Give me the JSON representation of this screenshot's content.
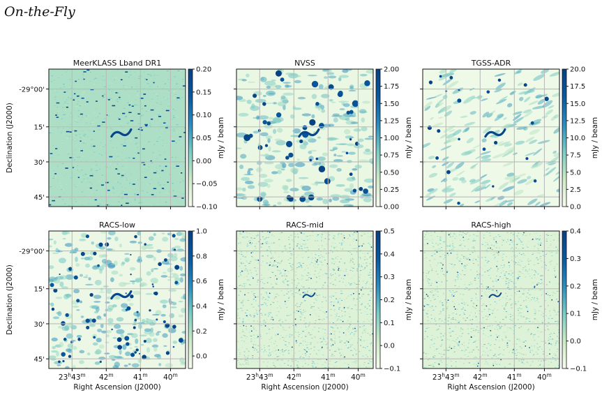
{
  "page": {
    "heading": "On-the-Fly"
  },
  "colors": {
    "colormap": [
      "#f7fcf0",
      "#ccebc5",
      "#7bccc4",
      "#2b8cbe",
      "#08589e",
      "#084081"
    ],
    "grid": "#bbbbbb",
    "axes": "#111111"
  },
  "chart_data": [
    {
      "type": "heatmap",
      "title": "MeerKLASS Lband DR1",
      "colorbar": {
        "label": "mJy / beam",
        "range": [
          -0.1,
          0.2
        ],
        "ticks": [
          "0.20",
          "0.15",
          "0.10",
          "0.05",
          "0.00",
          "−0.05",
          "−0.10"
        ]
      },
      "ylabel": "Declination (J2000)",
      "yticks": [
        "-29°00'",
        "15'",
        "30'",
        "45'"
      ],
      "xlabel": "",
      "xticks": [],
      "grid": true,
      "texture": "dense-noise"
    },
    {
      "type": "heatmap",
      "title": "NVSS",
      "colorbar": {
        "label": "mJy / beam",
        "range": [
          0,
          2
        ],
        "ticks": [
          "2.00",
          "1.75",
          "1.50",
          "1.25",
          "1.00",
          "0.75",
          "0.50",
          "0.25",
          "0.00"
        ]
      },
      "ylabel": "",
      "yticks": [],
      "xlabel": "",
      "xticks": [],
      "grid": true,
      "texture": "blobs"
    },
    {
      "type": "heatmap",
      "title": "TGSS-ADR",
      "colorbar": {
        "label": "mJy / beam",
        "range": [
          0,
          20
        ],
        "ticks": [
          "20.0",
          "17.5",
          "15.0",
          "12.5",
          "10.0",
          "7.5",
          "5.0",
          "2.5",
          "0.0"
        ]
      },
      "ylabel": "",
      "yticks": [],
      "xlabel": "",
      "xticks": [],
      "grid": true,
      "texture": "streaks"
    },
    {
      "type": "heatmap",
      "title": "RACS-low",
      "colorbar": {
        "label": "mJy / beam",
        "range": [
          -0.1,
          1.0
        ],
        "ticks": [
          "1.0",
          "0.8",
          "0.6",
          "0.4",
          "0.2",
          "0.0"
        ]
      },
      "ylabel": "Declination (J2000)",
      "yticks": [
        "-29°00'",
        "15'",
        "30'",
        "45'"
      ],
      "xlabel": "Right Ascension (J2000)",
      "xticks": [
        "23h43m",
        "42m",
        "41m",
        "40m"
      ],
      "grid": true,
      "texture": "blobs-fine"
    },
    {
      "type": "heatmap",
      "title": "RACS-mid",
      "colorbar": {
        "label": "mJy / beam",
        "range": [
          -0.1,
          0.5
        ],
        "ticks": [
          "0.5",
          "0.4",
          "0.3",
          "0.2",
          "0.1",
          "0.0",
          "−0.1"
        ]
      },
      "ylabel": "",
      "yticks": [],
      "xlabel": "Right Ascension (J2000)",
      "xticks": [
        "23h43m",
        "42m",
        "41m",
        "40m"
      ],
      "grid": true,
      "texture": "fine-noise"
    },
    {
      "type": "heatmap",
      "title": "RACS-high",
      "colorbar": {
        "label": "mJy / beam",
        "range": [
          -0.1,
          0.4
        ],
        "ticks": [
          "0.4",
          "0.3",
          "0.2",
          "0.1",
          "0.0",
          "−0.1"
        ]
      },
      "ylabel": "",
      "yticks": [],
      "xlabel": "Right Ascension (J2000)",
      "xticks": [
        "23h43m",
        "42m",
        "41m",
        "40m"
      ],
      "grid": true,
      "texture": "fine-noise"
    }
  ]
}
